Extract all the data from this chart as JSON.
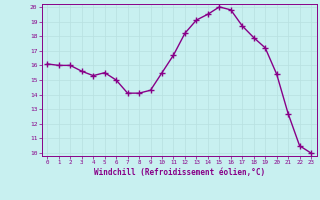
{
  "x": [
    0,
    1,
    2,
    3,
    4,
    5,
    6,
    7,
    8,
    9,
    10,
    11,
    12,
    13,
    14,
    15,
    16,
    17,
    18,
    19,
    20,
    21,
    22,
    23
  ],
  "y": [
    16.1,
    16.0,
    16.0,
    15.6,
    15.3,
    15.5,
    15.0,
    14.1,
    14.1,
    14.3,
    15.5,
    16.7,
    18.2,
    19.1,
    19.5,
    20.0,
    19.8,
    18.7,
    17.9,
    17.2,
    15.4,
    12.7,
    10.5,
    10.0
  ],
  "line_color": "#880088",
  "marker": "+",
  "marker_color": "#880088",
  "bg_color": "#c8f0f0",
  "grid_color": "#aadddd",
  "xlabel": "Windchill (Refroidissement éolien,°C)",
  "ylim": [
    10,
    20
  ],
  "xlim": [
    -0.5,
    23.5
  ],
  "yticks": [
    10,
    11,
    12,
    13,
    14,
    15,
    16,
    17,
    18,
    19,
    20
  ],
  "xticks": [
    0,
    1,
    2,
    3,
    4,
    5,
    6,
    7,
    8,
    9,
    10,
    11,
    12,
    13,
    14,
    15,
    16,
    17,
    18,
    19,
    20,
    21,
    22,
    23
  ],
  "tick_color": "#880088",
  "label_color": "#880088",
  "axis_color": "#880088",
  "grid_color2": "#b8e0e0",
  "line_width": 1.0,
  "marker_size": 4
}
